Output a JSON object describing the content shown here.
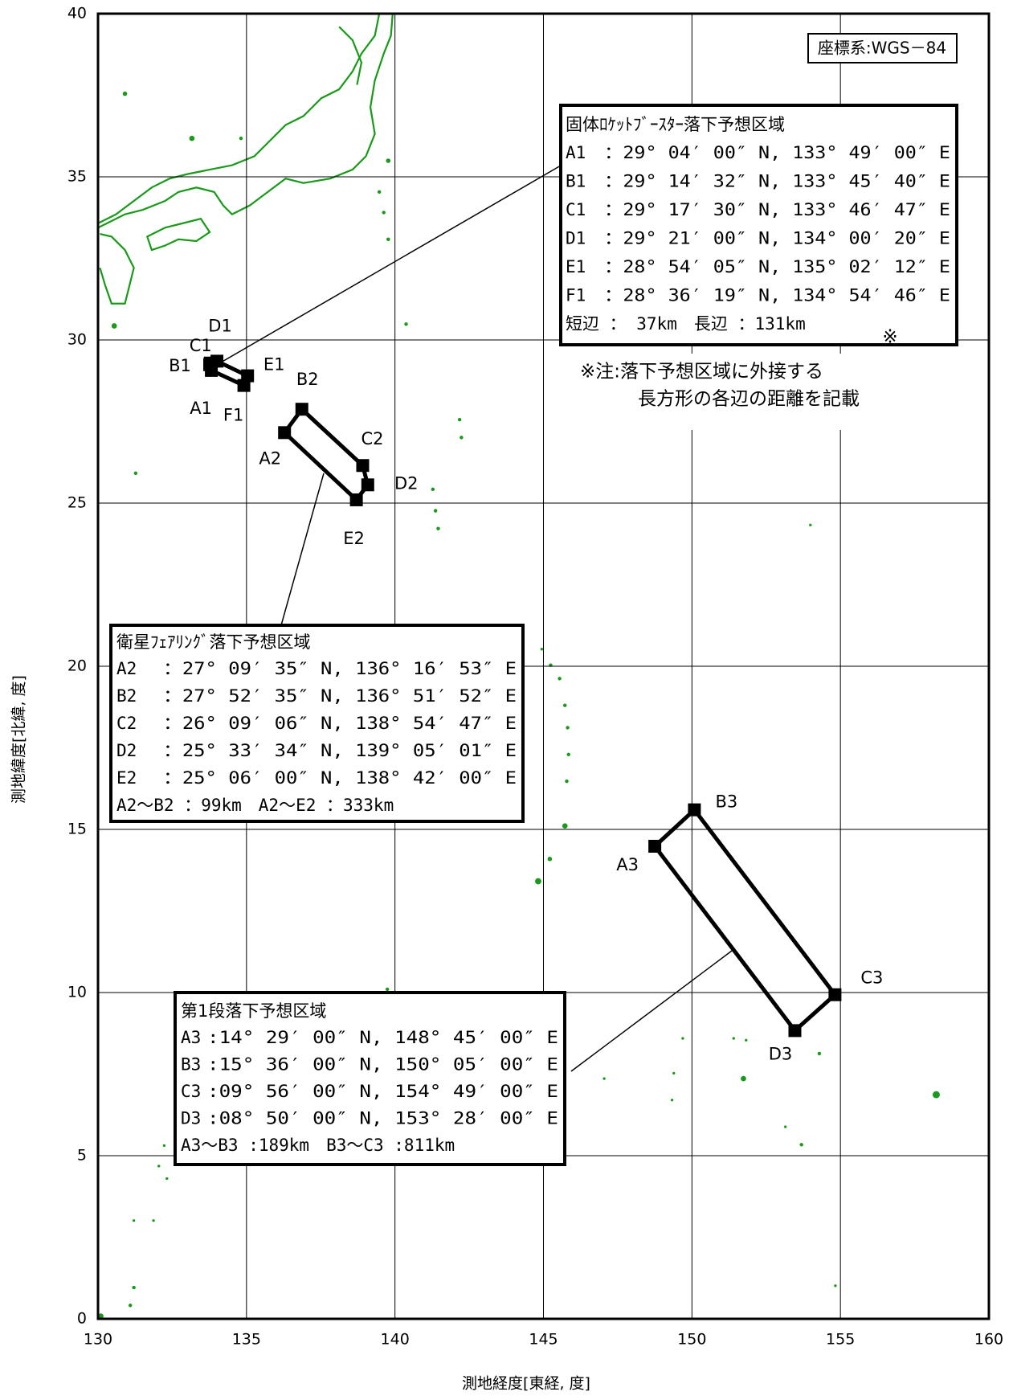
{
  "map": {
    "type": "map",
    "xlabel": "測地経度[東経, 度]",
    "ylabel": "測地緯度[北緯, 度]",
    "xlim": [
      130,
      160
    ],
    "ylim": [
      0,
      40
    ],
    "xticks": [
      130,
      135,
      140,
      145,
      150,
      155,
      160
    ],
    "yticks": [
      0,
      5,
      10,
      15,
      20,
      25,
      30,
      35,
      40
    ],
    "grid": true,
    "datum_label": "座標系:WGS－84",
    "zones": [
      {
        "title": "固体ﾛｹｯﾄﾌﾞｰｽﾀｰ落下予想区域",
        "points": [
          {
            "name": "A1",
            "coord": "：29° 04′ 00″ N, 133° 49′ 00″ E",
            "lat": 29.0667,
            "lon": 133.8167
          },
          {
            "name": "B1",
            "coord": "：29° 14′ 32″ N, 133° 45′ 40″ E",
            "lat": 29.2422,
            "lon": 133.7611
          },
          {
            "name": "C1",
            "coord": "：29° 17′ 30″ N, 133° 46′ 47″ E",
            "lat": 29.2917,
            "lon": 133.7797
          },
          {
            "name": "D1",
            "coord": "：29° 21′ 00″ N, 134° 00′ 20″ E",
            "lat": 29.35,
            "lon": 134.0056
          },
          {
            "name": "E1",
            "coord": "：28° 54′ 05″ N, 135° 02′ 12″ E",
            "lat": 28.9014,
            "lon": 135.0367
          },
          {
            "name": "F1",
            "coord": "：28° 36′ 19″ N, 134° 54′ 46″ E",
            "lat": 28.6053,
            "lon": 134.9128
          }
        ],
        "summary": "短辺 ： 37km　長辺 ：131km"
      },
      {
        "title": "衛星ﾌｪｱﾘﾝｸﾞ落下予想区域",
        "points": [
          {
            "name": "A2",
            "coord": "：27° 09′ 35″ N, 136° 16′ 53″ E",
            "lat": 27.1597,
            "lon": 136.2814
          },
          {
            "name": "B2",
            "coord": "：27° 52′ 35″ N, 136° 51′ 52″ E",
            "lat": 27.8764,
            "lon": 136.8644
          },
          {
            "name": "C2",
            "coord": "：26° 09′ 06″ N, 138° 54′ 47″ E",
            "lat": 26.1517,
            "lon": 138.9131
          },
          {
            "name": "D2",
            "coord": "：25° 33′ 34″ N, 139° 05′ 01″ E",
            "lat": 25.5594,
            "lon": 139.0836
          },
          {
            "name": "E2",
            "coord": "：25° 06′ 00″ N, 138° 42′ 00″ E",
            "lat": 25.1,
            "lon": 138.7
          }
        ],
        "summary": "A2～B2 ：99km　A2～E2 ：333km"
      },
      {
        "title": "第1段落下予想区域",
        "points": [
          {
            "name": "A3",
            "coord": ":14° 29′ 00″ N, 148° 45′ 00″ E",
            "lat": 14.4833,
            "lon": 148.75
          },
          {
            "name": "B3",
            "coord": ":15° 36′ 00″ N, 150° 05′ 00″ E",
            "lat": 15.6,
            "lon": 150.0833
          },
          {
            "name": "C3",
            "coord": ":09° 56′ 00″ N, 154° 49′ 00″ E",
            "lat": 9.9333,
            "lon": 154.8167
          },
          {
            "name": "D3",
            "coord": ":08° 50′ 00″ N, 153° 28′ 00″ E",
            "lat": 8.8333,
            "lon": 153.4667
          }
        ],
        "summary": "A3～B3 :189km　B3～C3 :811km"
      }
    ],
    "note_mark": "※",
    "note": [
      "※注:落下予想区域に外接する",
      "長方形の各辺の距離を記載"
    ]
  }
}
